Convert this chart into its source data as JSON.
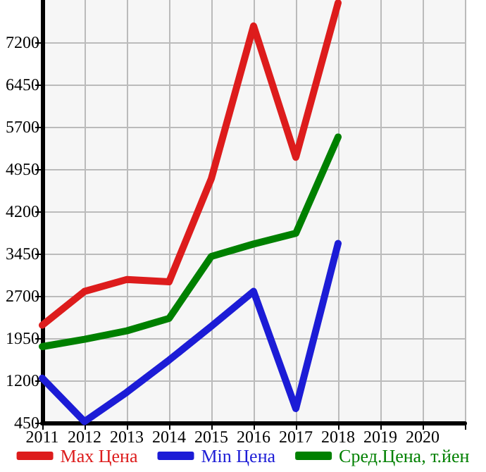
{
  "chart_data": {
    "type": "line",
    "x": [
      2011,
      2012,
      2013,
      2014,
      2015,
      2016,
      2017,
      2018
    ],
    "series": [
      {
        "name": "Max Цена",
        "color": "#dd1c1c",
        "values": [
          2180,
          2780,
          2990,
          2950,
          4780,
          7490,
          5160,
          7900
        ]
      },
      {
        "name": "Min Цена",
        "color": "#1c1cd6",
        "values": [
          1240,
          470,
          990,
          1560,
          2160,
          2780,
          700,
          3630
        ]
      },
      {
        "name": "Сред.Цена, т.йен",
        "color": "#008000",
        "values": [
          1800,
          1930,
          2080,
          2300,
          3400,
          3620,
          3810,
          5520
        ]
      }
    ],
    "xlim": [
      2011,
      2021
    ],
    "xticks": [
      2011,
      2012,
      2013,
      2014,
      2015,
      2016,
      2017,
      2018,
      2019,
      2020
    ],
    "ylim": [
      450,
      7950
    ],
    "yticks": [
      450,
      1200,
      1950,
      2700,
      3450,
      4200,
      4950,
      5700,
      6450,
      7200
    ],
    "grid": true,
    "legend": "bottom",
    "marker": "none",
    "line_style": "solid"
  }
}
